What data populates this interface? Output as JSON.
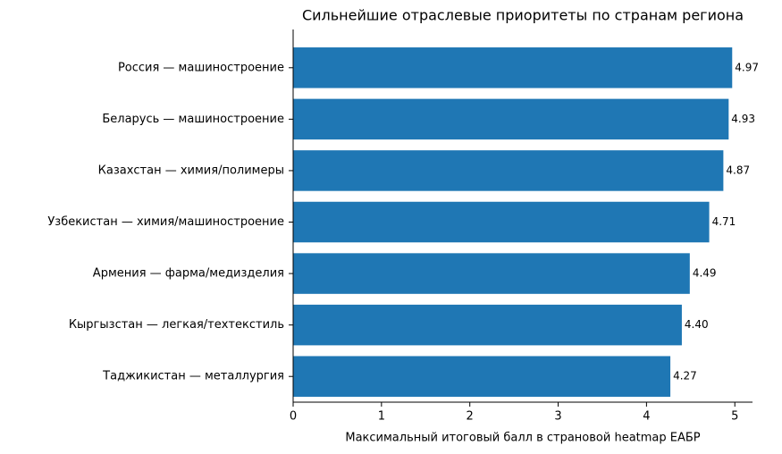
{
  "chart_data": {
    "type": "barh",
    "title": "Сильнейшие отраслевые приоритеты по странам региона",
    "xlabel": "Максимальный итоговый балл в страновой heatmap ЕАБР",
    "categories": [
      "Россия — машиностроение",
      "Беларусь — машиностроение",
      "Казахстан — химия/полимеры",
      "Узбекистан — химия/машиностроение",
      "Армения — фарма/медизделия",
      "Кыргызстан — легкая/техтекстиль",
      "Таджикистан — металлургия"
    ],
    "values": [
      4.97,
      4.93,
      4.87,
      4.71,
      4.49,
      4.4,
      4.27
    ],
    "value_labels": [
      "4.97",
      "4.93",
      "4.87",
      "4.71",
      "4.49",
      "4.40",
      "4.27"
    ],
    "color": "#1f77b4",
    "xlim": [
      0,
      5.2
    ],
    "xticks": [
      0,
      1,
      2,
      3,
      4,
      5
    ],
    "grid": false
  }
}
